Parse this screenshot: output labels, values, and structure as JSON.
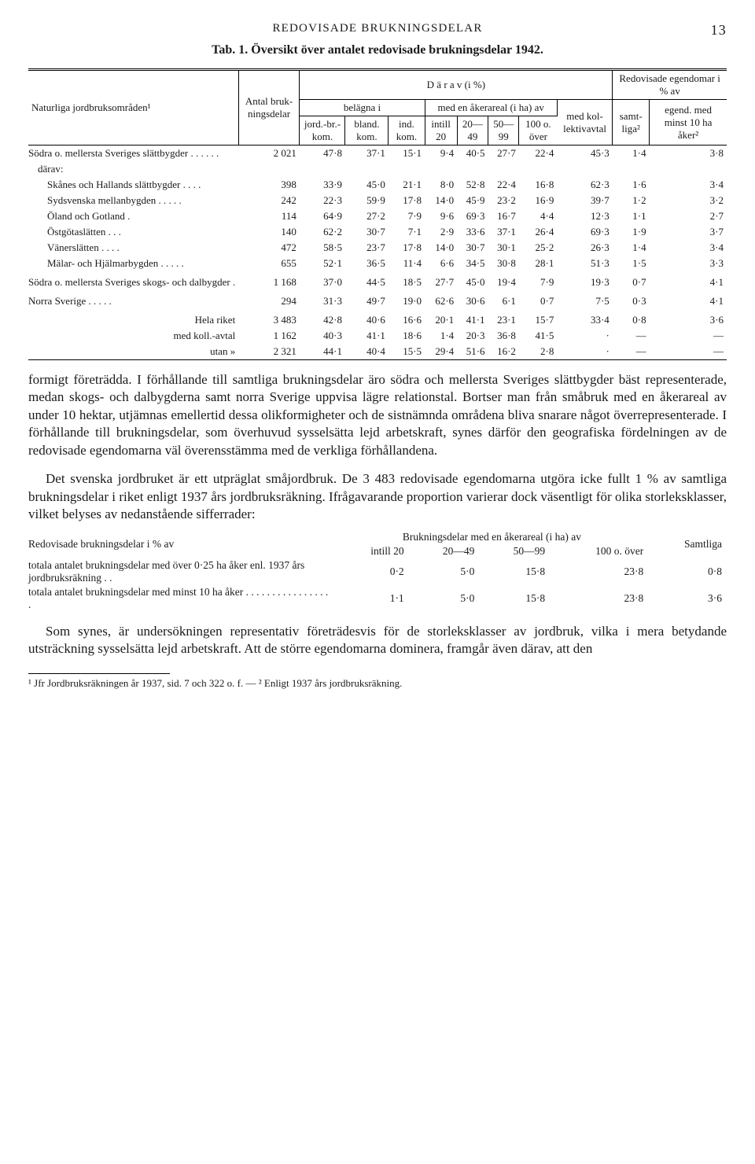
{
  "header": {
    "running": "REDOVISADE BRUKNINGSDELAR",
    "page_no": "13",
    "caption": "Tab. 1.  Översikt över antalet redovisade brukningsdelar 1942."
  },
  "table1": {
    "head": {
      "col1": "Naturliga jordbruks­områden¹",
      "col2": "Antal bruk­nings­delar",
      "span_darav": "D  ä  r  a  v   (i %)",
      "span_redov": "Redovisade egendomar i % av",
      "belagna": "belägna i",
      "med_aker": "med en åkerareal (i ha) av",
      "med_koll": "med kol­lek­tivav­tal",
      "samt": "samt­liga²",
      "egend": "egend. med minst 10 ha åker²",
      "jord": "jord.-br.-kom.",
      "bland": "bland. kom.",
      "ind": "ind. kom.",
      "a1": "intill 20",
      "a2": "20—49",
      "a3": "50—99",
      "a4": "100 o. över"
    },
    "rows": [
      {
        "lbl": "Södra o. mellersta Sveriges slättbygder . . . . . .",
        "cls": "",
        "v": [
          "2 021",
          "47·8",
          "37·1",
          "15·1",
          "9·4",
          "40·5",
          "27·7",
          "22·4",
          "45·3",
          "1·4",
          "3·8"
        ]
      },
      {
        "lbl": "därav:",
        "cls": "indent1",
        "v": [
          "",
          "",
          "",
          "",
          "",
          "",
          "",
          "",
          "",
          "",
          ""
        ]
      },
      {
        "lbl": "Skånes och Hallands slättbygder . . . .",
        "cls": "indent2",
        "v": [
          "398",
          "33·9",
          "45·0",
          "21·1",
          "8·0",
          "52·8",
          "22·4",
          "16·8",
          "62·3",
          "1·6",
          "3·4"
        ]
      },
      {
        "lbl": "Sydsvenska mellan­bygden . . . . .",
        "cls": "indent2",
        "v": [
          "242",
          "22·3",
          "59·9",
          "17·8",
          "14·0",
          "45·9",
          "23·2",
          "16·9",
          "39·7",
          "1·2",
          "3·2"
        ]
      },
      {
        "lbl": "Öland och Gotland .",
        "cls": "indent2",
        "v": [
          "114",
          "64·9",
          "27·2",
          "7·9",
          "9·6",
          "69·3",
          "16·7",
          "4·4",
          "12·3",
          "1·1",
          "2·7"
        ]
      },
      {
        "lbl": "Östgötaslätten . . .",
        "cls": "indent2",
        "v": [
          "140",
          "62·2",
          "30·7",
          "7·1",
          "2·9",
          "33·6",
          "37·1",
          "26·4",
          "69·3",
          "1·9",
          "3·7"
        ]
      },
      {
        "lbl": "Vänerslätten . . . .",
        "cls": "indent2",
        "v": [
          "472",
          "58·5",
          "23·7",
          "17·8",
          "14·0",
          "30·7",
          "30·1",
          "25·2",
          "26·3",
          "1·4",
          "3·4"
        ]
      },
      {
        "lbl": "Mälar- och Hjälmar­bygden . . . . .",
        "cls": "indent2",
        "v": [
          "655",
          "52·1",
          "36·5",
          "11·4",
          "6·6",
          "34·5",
          "30·8",
          "28·1",
          "51·3",
          "1·5",
          "3·3"
        ]
      },
      {
        "lbl": "Södra o. mellersta Sveriges skogs- och dalbygder .",
        "cls": "gap",
        "v": [
          "1 168",
          "37·0",
          "44·5",
          "18·5",
          "27·7",
          "45·0",
          "19·4",
          "7·9",
          "19·3",
          "0·7",
          "4·1"
        ]
      },
      {
        "lbl": "Norra Sverige . . . . .",
        "cls": "gap",
        "v": [
          "294",
          "31·3",
          "49·7",
          "19·0",
          "62·6",
          "30·6",
          "6·1",
          "0·7",
          "7·5",
          "0·3",
          "4·1"
        ]
      },
      {
        "lbl": "Hela riket",
        "cls": "gap",
        "align": "right",
        "v": [
          "3 483",
          "42·8",
          "40·6",
          "16·6",
          "20·1",
          "41·1",
          "23·1",
          "15·7",
          "33·4",
          "0·8",
          "3·6"
        ]
      },
      {
        "lbl": "med koll.-avtal",
        "cls": "",
        "align": "right",
        "v": [
          "1 162",
          "40·3",
          "41·1",
          "18·6",
          "1·4",
          "20·3",
          "36·8",
          "41·5",
          "·",
          "—",
          "—"
        ]
      },
      {
        "lbl": "utan      »",
        "cls": "",
        "align": "right",
        "v": [
          "2 321",
          "44·1",
          "40·4",
          "15·5",
          "29·4",
          "51·6",
          "16·2",
          "2·8",
          "·",
          "—",
          "—"
        ]
      }
    ]
  },
  "para1": "formigt företrädda. I förhållande till samtliga brukningsdelar äro södra och mellersta Sveriges slättbygder bäst representerade, medan skogs- och dal­bygderna samt norra Sverige uppvisa lägre relationstal. Bortser man från småbruk med en åkerareal av under 10 hektar, utjämnas emellertid dessa olik­formigheter och de sistnämnda områdena bliva snarare något överrepre­senterade. I förhållande till brukningsdelar, som överhuvud sysselsätta lejd arbetskraft, synes därför den geografiska fördelningen av de redovisade egendomarna väl överensstämma med de verkliga förhållandena.",
  "para2": "Det svenska jordbruket är ett utpräglat småjordbruk. De 3 483 redovisade egendomarna utgöra icke fullt 1 % av samtliga brukningsdelar i riket enligt 1937 års jordbruksräkning. Ifrågavarande proportion varierar dock väsent­ligt för olika storleksklasser, vilket belyses av nedanstående sifferrader:",
  "table2": {
    "head": {
      "lbl": "Redovisade brukningsdelar i % av",
      "span": "Brukningsdelar med en åkerareal (i ha) av",
      "c1": "intill 20",
      "c2": "20—49",
      "c3": "50—99",
      "c4": "100 o. över",
      "c5": "Samtliga"
    },
    "rows": [
      {
        "lbl": "totala antalet brukningsdelar med över 0·25 ha åker enl. 1937 års jordbruksräkning . .",
        "v": [
          "0·2",
          "5·0",
          "15·8",
          "23·8",
          "0·8"
        ]
      },
      {
        "lbl": "totala antalet brukningsdelar med minst 10 ha åker . . . . . . . . . . . . . . . . .",
        "v": [
          "1·1",
          "5·0",
          "15·8",
          "23·8",
          "3·6"
        ]
      }
    ]
  },
  "para3": "Som synes, är undersökningen representativ företrädesvis för de storleks­klasser av jordbruk, vilka i mera betydande utsträckning sysselsätta lejd ar­betskraft. Att de större egendomarna dominera, framgår även därav, att den",
  "footnote": "¹ Jfr Jordbruksräkningen år 1937, sid. 7 och 322 o. f. — ² Enligt 1937 års jordbruksräkning."
}
